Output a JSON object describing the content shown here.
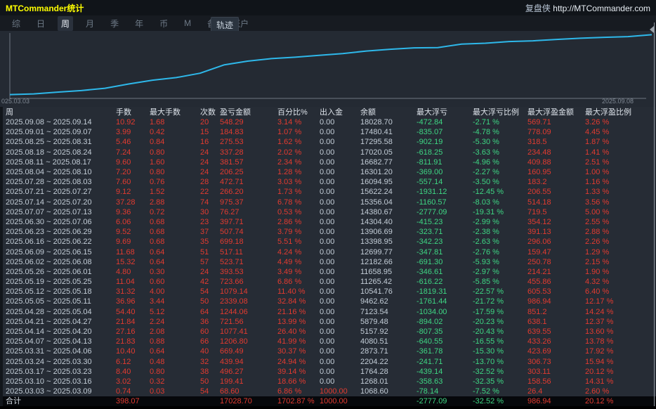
{
  "window": {
    "title": "MTCommander统计",
    "brand_text": "复盘侠",
    "brand_url": "http://MTCommander.com"
  },
  "menu": {
    "items": [
      {
        "label": "综",
        "active": false
      },
      {
        "label": "日",
        "active": false
      },
      {
        "label": "周",
        "active": true
      },
      {
        "label": "月",
        "active": false
      },
      {
        "label": "季",
        "active": false
      },
      {
        "label": "年",
        "active": false
      },
      {
        "label": "币",
        "active": false
      },
      {
        "label": "M",
        "active": false
      },
      {
        "label": "备",
        "active": false
      },
      {
        "label": "账户",
        "active": false
      }
    ],
    "track_button_label": "轨迹"
  },
  "chart": {
    "x_start_label": "025.03.03",
    "x_end_label": "2025.09.08"
  },
  "chart_data": {
    "type": "line",
    "title": "",
    "xlabel": "",
    "ylabel": "",
    "x": [
      "2025.03.03",
      "2025.03.10",
      "2025.03.17",
      "2025.03.24",
      "2025.03.31",
      "2025.04.07",
      "2025.04.14",
      "2025.04.21",
      "2025.04.28",
      "2025.05.05",
      "2025.05.12",
      "2025.05.19",
      "2025.05.26",
      "2025.06.02",
      "2025.06.09",
      "2025.06.16",
      "2025.06.23",
      "2025.06.30",
      "2025.07.07",
      "2025.07.14",
      "2025.07.21",
      "2025.07.28",
      "2025.08.04",
      "2025.08.11",
      "2025.08.18",
      "2025.08.25",
      "2025.09.01",
      "2025.09.08"
    ],
    "series": [
      {
        "name": "余额",
        "values": [
          1068.6,
          1268.01,
          1764.28,
          2204.22,
          2873.71,
          4080.51,
          5157.92,
          5879.48,
          7123.54,
          9462.62,
          10541.76,
          11265.42,
          11658.95,
          12182.66,
          12699.77,
          13398.95,
          13906.69,
          14304.4,
          14380.67,
          15356.04,
          15622.24,
          16094.95,
          16301.2,
          16682.77,
          17020.05,
          17295.58,
          17480.41,
          18028.7
        ]
      }
    ],
    "ylim": [
      0,
      18500
    ],
    "grid": false,
    "legend": false,
    "line_color": "#2eb8ea"
  },
  "table": {
    "columns": [
      "周",
      "手数",
      "最大手数",
      "次数",
      "盈亏金额",
      "百分比%",
      "出入金",
      "余额",
      "最大浮亏",
      "最大浮亏比例",
      "最大浮盈金额",
      "最大浮盈比例"
    ],
    "rows": [
      [
        "2025.09.08 ~ 2025.09.14",
        "10.92",
        "1.68",
        "20",
        "548.29",
        "3.14 %",
        "0.00",
        "18028.70",
        "-472.84",
        "-2.71 %",
        "569.71",
        "3.26 %"
      ],
      [
        "2025.09.01 ~ 2025.09.07",
        "3.99",
        "0.42",
        "15",
        "184.83",
        "1.07 %",
        "0.00",
        "17480.41",
        "-835.07",
        "-4.78 %",
        "778.09",
        "4.45 %"
      ],
      [
        "2025.08.25 ~ 2025.08.31",
        "5.46",
        "0.84",
        "16",
        "275.53",
        "1.62 %",
        "0.00",
        "17295.58",
        "-902.19",
        "-5.30 %",
        "318.5",
        "1.87 %"
      ],
      [
        "2025.08.18 ~ 2025.08.24",
        "7.24",
        "0.80",
        "24",
        "337.28",
        "2.02 %",
        "0.00",
        "17020.05",
        "-618.25",
        "-3.63 %",
        "234.48",
        "1.41 %"
      ],
      [
        "2025.08.11 ~ 2025.08.17",
        "9.60",
        "1.60",
        "24",
        "381.57",
        "2.34 %",
        "0.00",
        "16682.77",
        "-811.91",
        "-4.96 %",
        "409.88",
        "2.51 %"
      ],
      [
        "2025.08.04 ~ 2025.08.10",
        "7.20",
        "0.80",
        "24",
        "206.25",
        "1.28 %",
        "0.00",
        "16301.20",
        "-369.00",
        "-2.27 %",
        "160.95",
        "1.00 %"
      ],
      [
        "2025.07.28 ~ 2025.08.03",
        "7.60",
        "0.76",
        "28",
        "472.71",
        "3.03 %",
        "0.00",
        "16094.95",
        "-557.14",
        "-3.50 %",
        "183.2",
        "1.16 %"
      ],
      [
        "2025.07.21 ~ 2025.07.27",
        "9.12",
        "1.52",
        "22",
        "266.20",
        "1.73 %",
        "0.00",
        "15622.24",
        "-1931.12",
        "-12.45 %",
        "206.55",
        "1.33 %"
      ],
      [
        "2025.07.14 ~ 2025.07.20",
        "37.28",
        "2.88",
        "74",
        "975.37",
        "6.78 %",
        "0.00",
        "15356.04",
        "-1160.57",
        "-8.03 %",
        "514.18",
        "3.56 %"
      ],
      [
        "2025.07.07 ~ 2025.07.13",
        "9.36",
        "0.72",
        "30",
        "76.27",
        "0.53 %",
        "0.00",
        "14380.67",
        "-2777.09",
        "-19.31 %",
        "719.5",
        "5.00 %"
      ],
      [
        "2025.06.30 ~ 2025.07.06",
        "6.06",
        "0.68",
        "23",
        "397.71",
        "2.86 %",
        "0.00",
        "14304.40",
        "-415.23",
        "-2.99 %",
        "354.12",
        "2.55 %"
      ],
      [
        "2025.06.23 ~ 2025.06.29",
        "9.52",
        "0.68",
        "37",
        "507.74",
        "3.79 %",
        "0.00",
        "13906.69",
        "-323.71",
        "-2.38 %",
        "391.13",
        "2.88 %"
      ],
      [
        "2025.06.16 ~ 2025.06.22",
        "9.69",
        "0.68",
        "35",
        "699.18",
        "5.51 %",
        "0.00",
        "13398.95",
        "-342.23",
        "-2.63 %",
        "296.06",
        "2.26 %"
      ],
      [
        "2025.06.09 ~ 2025.06.15",
        "11.68",
        "0.64",
        "51",
        "517.11",
        "4.24 %",
        "0.00",
        "12699.77",
        "-347.81",
        "-2.76 %",
        "159.47",
        "1.29 %"
      ],
      [
        "2025.06.02 ~ 2025.06.08",
        "15.32",
        "0.64",
        "57",
        "523.71",
        "4.49 %",
        "0.00",
        "12182.66",
        "-691.30",
        "-5.93 %",
        "250.78",
        "2.15 %"
      ],
      [
        "2025.05.26 ~ 2025.06.01",
        "4.80",
        "0.30",
        "24",
        "393.53",
        "3.49 %",
        "0.00",
        "11658.95",
        "-346.61",
        "-2.97 %",
        "214.21",
        "1.90 %"
      ],
      [
        "2025.05.19 ~ 2025.05.25",
        "11.04",
        "0.60",
        "42",
        "723.66",
        "6.86 %",
        "0.00",
        "11265.42",
        "-616.22",
        "-5.85 %",
        "455.86",
        "4.32 %"
      ],
      [
        "2025.05.12 ~ 2025.05.18",
        "31.32",
        "4.00",
        "54",
        "1079.14",
        "11.40 %",
        "0.00",
        "10541.76",
        "-1819.31",
        "-22.57 %",
        "605.53",
        "6.40 %"
      ],
      [
        "2025.05.05 ~ 2025.05.11",
        "36.96",
        "3.44",
        "50",
        "2339.08",
        "32.84 %",
        "0.00",
        "9462.62",
        "-1761.44",
        "-21.72 %",
        "986.94",
        "12.17 %"
      ],
      [
        "2025.04.28 ~ 2025.05.04",
        "54.40",
        "5.12",
        "64",
        "1244.06",
        "21.16 %",
        "0.00",
        "7123.54",
        "-1034.00",
        "-17.59 %",
        "851.2",
        "14.24 %"
      ],
      [
        "2025.04.21 ~ 2025.04.27",
        "21.84",
        "2.24",
        "36",
        "721.56",
        "13.99 %",
        "0.00",
        "5879.48",
        "-894.02",
        "-20.23 %",
        "638.1",
        "12.37 %"
      ],
      [
        "2025.04.14 ~ 2025.04.20",
        "27.16",
        "2.08",
        "60",
        "1077.41",
        "26.40 %",
        "0.00",
        "5157.92",
        "-807.35",
        "-20.43 %",
        "639.55",
        "13.60 %"
      ],
      [
        "2025.04.07 ~ 2025.04.13",
        "21.83",
        "0.88",
        "66",
        "1206.80",
        "41.99 %",
        "0.00",
        "4080.51",
        "-640.55",
        "-16.55 %",
        "433.26",
        "13.78 %"
      ],
      [
        "2025.03.31 ~ 2025.04.06",
        "10.40",
        "0.64",
        "40",
        "669.49",
        "30.37 %",
        "0.00",
        "2873.71",
        "-361.78",
        "-15.30 %",
        "423.69",
        "17.92 %"
      ],
      [
        "2025.03.24 ~ 2025.03.30",
        "6.12",
        "0.48",
        "32",
        "439.94",
        "24.94 %",
        "0.00",
        "2204.22",
        "-241.71",
        "-13.70 %",
        "306.73",
        "15.94 %"
      ],
      [
        "2025.03.17 ~ 2025.03.23",
        "8.40",
        "0.80",
        "38",
        "496.27",
        "39.14 %",
        "0.00",
        "1764.28",
        "-439.14",
        "-32.52 %",
        "303.11",
        "20.12 %"
      ],
      [
        "2025.03.10 ~ 2025.03.16",
        "3.02",
        "0.32",
        "50",
        "199.41",
        "18.66 %",
        "0.00",
        "1268.01",
        "-358.63",
        "-32.35 %",
        "158.56",
        "14.31 %"
      ],
      [
        "2025.03.03 ~ 2025.03.09",
        "0.74",
        "0.03",
        "54",
        "68.60",
        "6.86 %",
        "1000.00",
        "1068.60",
        "-78.14",
        "-7.52 %",
        "26.4",
        "2.60 %"
      ]
    ],
    "inout_red_rows": [
      27
    ],
    "total": [
      "合计",
      "398.07",
      "",
      "",
      "17028.70",
      "1702.87 %",
      "1000.00",
      "",
      "-2777.09",
      "-32.52 %",
      "986.94",
      "20.12 %"
    ]
  },
  "colors": {
    "red": "#e23b30",
    "green": "#3ed683",
    "line": "#2eb8ea",
    "title_yellow": "#ffff00"
  }
}
